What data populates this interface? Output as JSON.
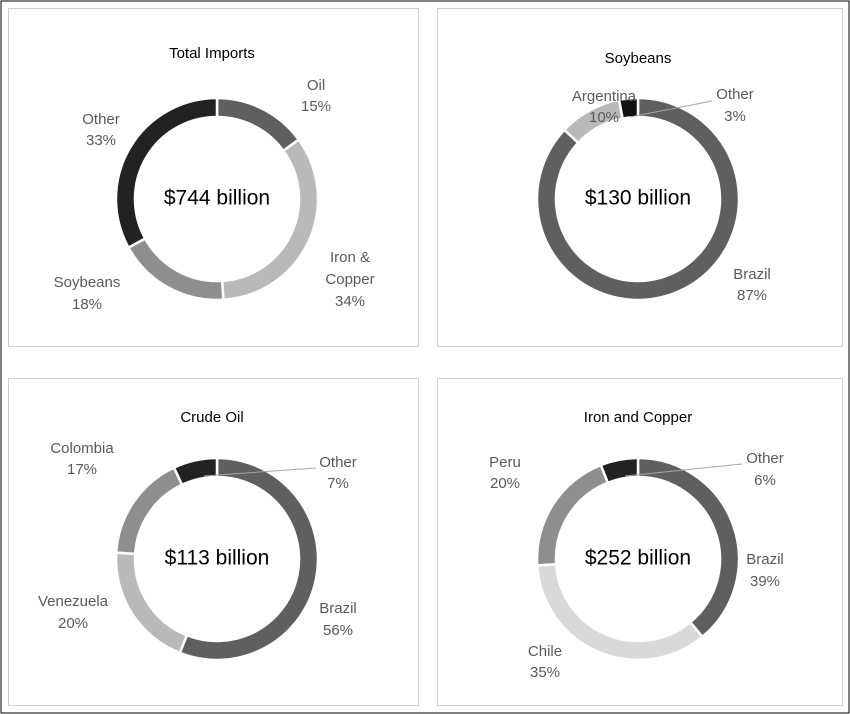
{
  "chart_data": [
    {
      "type": "donut",
      "title": "Total Imports",
      "center_label": "$744 billion",
      "categories": [
        "Oil",
        "Iron & Copper",
        "Soybeans",
        "Other"
      ],
      "values": [
        15,
        34,
        18,
        33
      ],
      "value_labels": [
        "15%",
        "34%",
        "18%",
        "33%"
      ],
      "colors": [
        "#5f5f5f",
        "#b9b9b9",
        "#8e8e8e",
        "#222222"
      ]
    },
    {
      "type": "donut",
      "title": "Soybeans",
      "center_label": "$130 billion",
      "categories": [
        "Brazil",
        "Argentina",
        "Other"
      ],
      "values": [
        87,
        10,
        3
      ],
      "value_labels": [
        "87%",
        "10%",
        "3%"
      ],
      "colors": [
        "#5f5f5f",
        "#b9b9b9",
        "#111111"
      ]
    },
    {
      "type": "donut",
      "title": "Crude Oil",
      "center_label": "$113 billion",
      "categories": [
        "Brazil",
        "Venezuela",
        "Colombia",
        "Other"
      ],
      "values": [
        56,
        20,
        17,
        7
      ],
      "value_labels": [
        "56%",
        "20%",
        "17%",
        "7%"
      ],
      "colors": [
        "#5f5f5f",
        "#b9b9b9",
        "#8e8e8e",
        "#222222"
      ]
    },
    {
      "type": "donut",
      "title": "Iron and Copper",
      "center_label": "$252 billion",
      "categories": [
        "Brazil",
        "Chile",
        "Peru",
        "Other"
      ],
      "values": [
        39,
        35,
        20,
        6
      ],
      "value_labels": [
        "39%",
        "35%",
        "20%",
        "6%"
      ],
      "colors": [
        "#5f5f5f",
        "#d9d9d9",
        "#8e8e8e",
        "#222222"
      ]
    }
  ]
}
